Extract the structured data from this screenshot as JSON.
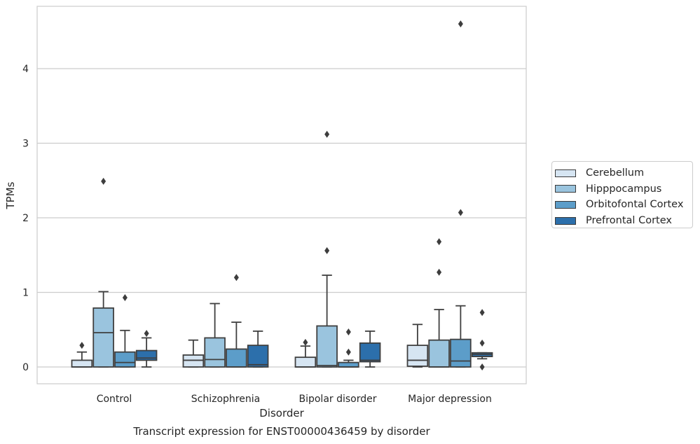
{
  "chart_data": {
    "type": "box",
    "title": "Transcript expression for ENST00000436459 by disorder",
    "xlabel": "Disorder",
    "ylabel": "TPMs",
    "ylim": [
      -0.22,
      4.82
    ],
    "yticks": [
      0,
      1,
      2,
      3,
      4
    ],
    "categories": [
      "Control",
      "Schizophrenia",
      "Bipolar disorder",
      "Major depression"
    ],
    "grid": "horizontal",
    "legend_placement": "right",
    "series": [
      {
        "name": "Cerebellum",
        "color": "#d6e5f2",
        "boxes": [
          {
            "whislo": 0.0,
            "q1": 0.0,
            "med": 0.0,
            "q3": 0.09,
            "whishi": 0.2,
            "fliers": [
              0.29
            ]
          },
          {
            "whislo": 0.0,
            "q1": 0.0,
            "med": 0.09,
            "q3": 0.16,
            "whishi": 0.36,
            "fliers": []
          },
          {
            "whislo": 0.0,
            "q1": 0.0,
            "med": 0.0,
            "q3": 0.13,
            "whishi": 0.28,
            "fliers": [
              0.33
            ]
          },
          {
            "whislo": 0.0,
            "q1": 0.01,
            "med": 0.09,
            "q3": 0.29,
            "whishi": 0.57,
            "fliers": []
          }
        ]
      },
      {
        "name": "Hipppocampus",
        "color": "#9ac4de",
        "boxes": [
          {
            "whislo": 0.0,
            "q1": 0.0,
            "med": 0.46,
            "q3": 0.79,
            "whishi": 1.01,
            "fliers": [
              2.49
            ]
          },
          {
            "whislo": 0.0,
            "q1": 0.0,
            "med": 0.1,
            "q3": 0.39,
            "whishi": 0.85,
            "fliers": []
          },
          {
            "whislo": 0.0,
            "q1": 0.0,
            "med": 0.02,
            "q3": 0.55,
            "whishi": 1.23,
            "fliers": [
              1.56,
              3.12
            ]
          },
          {
            "whislo": 0.0,
            "q1": 0.0,
            "med": 0.0,
            "q3": 0.36,
            "whishi": 0.77,
            "fliers": [
              1.27,
              1.68
            ]
          }
        ]
      },
      {
        "name": "Orbitofontal Cortex",
        "color": "#5c9dc9",
        "boxes": [
          {
            "whislo": 0.0,
            "q1": 0.0,
            "med": 0.06,
            "q3": 0.2,
            "whishi": 0.49,
            "fliers": [
              0.93
            ]
          },
          {
            "whislo": 0.0,
            "q1": 0.0,
            "med": 0.0,
            "q3": 0.24,
            "whishi": 0.6,
            "fliers": [
              1.2
            ]
          },
          {
            "whislo": 0.0,
            "q1": 0.0,
            "med": 0.0,
            "q3": 0.06,
            "whishi": 0.09,
            "fliers": [
              0.2,
              0.47
            ]
          },
          {
            "whislo": 0.0,
            "q1": 0.0,
            "med": 0.08,
            "q3": 0.37,
            "whishi": 0.82,
            "fliers": [
              2.07,
              4.6
            ]
          }
        ]
      },
      {
        "name": "Prefrontal Cortex",
        "color": "#2c6fab",
        "boxes": [
          {
            "whislo": 0.0,
            "q1": 0.09,
            "med": 0.12,
            "q3": 0.22,
            "whishi": 0.39,
            "fliers": [
              0.45
            ]
          },
          {
            "whislo": 0.0,
            "q1": 0.0,
            "med": 0.03,
            "q3": 0.29,
            "whishi": 0.48,
            "fliers": []
          },
          {
            "whislo": 0.0,
            "q1": 0.07,
            "med": 0.09,
            "q3": 0.32,
            "whishi": 0.48,
            "fliers": []
          },
          {
            "whislo": 0.11,
            "q1": 0.14,
            "med": 0.17,
            "q3": 0.19,
            "whishi": 0.19,
            "fliers": [
              0.0,
              0.32,
              0.73
            ]
          }
        ]
      }
    ]
  }
}
